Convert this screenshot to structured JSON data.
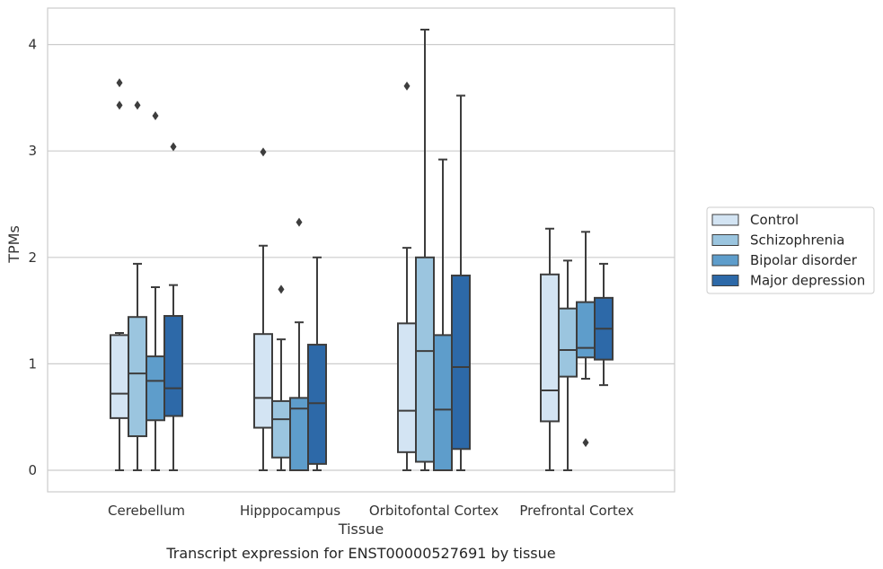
{
  "chart_data": {
    "type": "box",
    "xlabel": "Tissue",
    "ylabel": "TPMs",
    "caption": "Transcript expression for ENST00000527691 by tissue",
    "ylim": [
      -0.2,
      4.35
    ],
    "yticks": [
      0,
      1,
      2,
      3,
      4
    ],
    "ytick_labels": [
      "0",
      "1",
      "2",
      "3",
      "4"
    ],
    "grid": "horizontal",
    "legend_position": "right",
    "categories": [
      "Cerebellum",
      "Hipppocampus",
      "Orbitofontal Cortex",
      "Prefrontal Cortex"
    ],
    "series": [
      {
        "name": "Control",
        "color": "#d3e4f3",
        "boxes": [
          {
            "whisker_low": 0,
            "q1": 0.49,
            "median": 0.72,
            "q3": 1.27,
            "whisker_high": 1.29,
            "outliers": [
              3.43,
              3.64
            ]
          },
          {
            "whisker_low": 0,
            "q1": 0.4,
            "median": 0.68,
            "q3": 1.28,
            "whisker_high": 2.11,
            "outliers": [
              2.99
            ]
          },
          {
            "whisker_low": 0,
            "q1": 0.17,
            "median": 0.56,
            "q3": 1.38,
            "whisker_high": 2.09,
            "outliers": [
              3.61
            ]
          },
          {
            "whisker_low": 0,
            "q1": 0.46,
            "median": 0.75,
            "q3": 1.84,
            "whisker_high": 2.27,
            "outliers": []
          }
        ]
      },
      {
        "name": "Schizophrenia",
        "color": "#9bc5df",
        "boxes": [
          {
            "whisker_low": 0,
            "q1": 0.32,
            "median": 0.91,
            "q3": 1.44,
            "whisker_high": 1.94,
            "outliers": [
              3.43
            ]
          },
          {
            "whisker_low": 0,
            "q1": 0.12,
            "median": 0.48,
            "q3": 0.65,
            "whisker_high": 1.23,
            "outliers": [
              1.7
            ]
          },
          {
            "whisker_low": 0,
            "q1": 0.08,
            "median": 1.12,
            "q3": 2.0,
            "whisker_high": 4.14,
            "outliers": []
          },
          {
            "whisker_low": 0,
            "q1": 0.88,
            "median": 1.13,
            "q3": 1.52,
            "whisker_high": 1.97,
            "outliers": []
          }
        ]
      },
      {
        "name": "Bipolar disorder",
        "color": "#5e9dcb",
        "boxes": [
          {
            "whisker_low": 0,
            "q1": 0.47,
            "median": 0.84,
            "q3": 1.07,
            "whisker_high": 1.72,
            "outliers": [
              3.33
            ]
          },
          {
            "whisker_low": 0,
            "q1": 0,
            "median": 0.58,
            "q3": 0.68,
            "whisker_high": 1.39,
            "outliers": [
              2.33
            ]
          },
          {
            "whisker_low": 0,
            "q1": 0,
            "median": 0.57,
            "q3": 1.27,
            "whisker_high": 2.92,
            "outliers": []
          },
          {
            "whisker_low": 0.86,
            "q1": 1.06,
            "median": 1.15,
            "q3": 1.58,
            "whisker_high": 2.24,
            "outliers": [
              0.26
            ]
          }
        ]
      },
      {
        "name": "Major depression",
        "color": "#2d69a8",
        "boxes": [
          {
            "whisker_low": 0,
            "q1": 0.51,
            "median": 0.77,
            "q3": 1.45,
            "whisker_high": 1.74,
            "outliers": [
              3.04
            ]
          },
          {
            "whisker_low": 0,
            "q1": 0.06,
            "median": 0.63,
            "q3": 1.18,
            "whisker_high": 2.0,
            "outliers": []
          },
          {
            "whisker_low": 0,
            "q1": 0.2,
            "median": 0.97,
            "q3": 1.83,
            "whisker_high": 3.52,
            "outliers": []
          },
          {
            "whisker_low": 0.8,
            "q1": 1.04,
            "median": 1.33,
            "q3": 1.62,
            "whisker_high": 1.94,
            "outliers": []
          }
        ]
      }
    ],
    "colors": {
      "grid": "#cccccc",
      "frame": "#cccccc",
      "box_edge": "#3d3d3d",
      "legend_edge": "#cccccc"
    }
  }
}
